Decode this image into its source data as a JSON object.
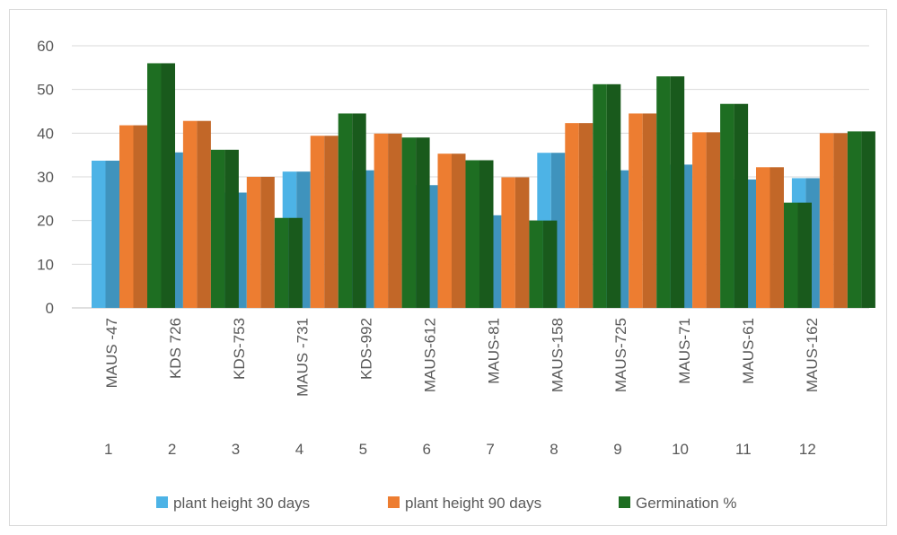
{
  "chart_data": {
    "type": "bar",
    "title": "",
    "xlabel": "",
    "ylabel": "",
    "ylim": [
      0,
      60
    ],
    "yticks": [
      0,
      10,
      20,
      30,
      40,
      50,
      60
    ],
    "grid": true,
    "legend_position": "bottom",
    "categories": [
      "MAUS -47",
      "KDS 726",
      "KDS-753",
      "MAUS -731",
      "KDS-992",
      "MAUS-612",
      "MAUS-81",
      "MAUS-158",
      "MAUS-725",
      "MAUS-71",
      "MAUS-61",
      "MAUS-162"
    ],
    "category_numbers": [
      "1",
      "2",
      "3",
      "4",
      "5",
      "6",
      "7",
      "8",
      "9",
      "10",
      "11",
      "12"
    ],
    "series": [
      {
        "name": "plant height 30 days",
        "color": "#4db3e6",
        "values": [
          33.7,
          35.6,
          26.4,
          31.2,
          31.5,
          28.1,
          21.2,
          35.5,
          31.5,
          32.8,
          29.4,
          29.7
        ]
      },
      {
        "name": "plant height 90 days",
        "color": "#ed7d31",
        "values": [
          41.8,
          42.8,
          30.0,
          39.4,
          39.9,
          35.3,
          29.9,
          42.3,
          44.5,
          40.2,
          32.2,
          40.0
        ]
      },
      {
        "name": "Germination %",
        "color": "#1e6e22",
        "values": [
          56.0,
          36.2,
          20.6,
          44.5,
          39.0,
          33.8,
          20.0,
          51.2,
          53.0,
          46.7,
          24.1,
          40.4
        ]
      }
    ]
  }
}
